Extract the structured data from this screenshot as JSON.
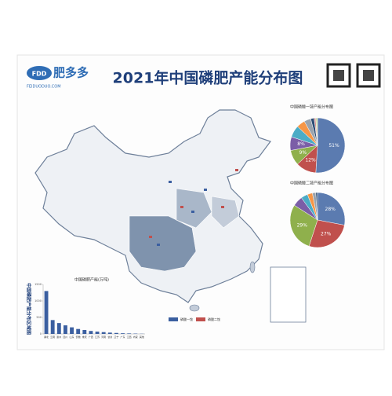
{
  "header": {
    "logo_mark": "FDD",
    "logo_name": "肥多多",
    "logo_site": "FEIDUODUO.COM",
    "title": "2021年中国磷肥产能分布图"
  },
  "pie_charts": [
    {
      "type": "pie",
      "title": "中国磷酸一铵产能分布图",
      "values": [
        51,
        12,
        9,
        8,
        7,
        5,
        4,
        2,
        1,
        1
      ],
      "value_labels": [
        "51%",
        "12%",
        "9%",
        "8%",
        null,
        null,
        null,
        null,
        null,
        null
      ],
      "colors": [
        "#5b7bb0",
        "#c0504d",
        "#8fb04c",
        "#7b5ea7",
        "#4bacc6",
        "#f79646",
        "#9aa3ad",
        "#2c4d75",
        "#d99694",
        "#c3d69b"
      ]
    },
    {
      "type": "pie",
      "title": "中国磷酸二铵产能分布图",
      "values": [
        28,
        27,
        29,
        6,
        4,
        3,
        2,
        1
      ],
      "value_labels": [
        "28%",
        "27%",
        "29%",
        null,
        null,
        null,
        null,
        null
      ],
      "colors": [
        "#5b7bb0",
        "#c0504d",
        "#8fb04c",
        "#7b5ea7",
        "#4bacc6",
        "#f79646",
        "#9aa3ad",
        "#2c4d75"
      ]
    }
  ],
  "bar_chart": {
    "type": "bar",
    "title": "中国磷肥产能(万吨)",
    "side_title": "中国磷肥产能分布区域图",
    "categories": [
      "湖北",
      "云南",
      "贵州",
      "四川",
      "山东",
      "安徽",
      "重庆",
      "广西",
      "江苏",
      "河南",
      "甘肃",
      "辽宁",
      "广东",
      "江西",
      "内蒙",
      "其他"
    ],
    "values": [
      1300,
      420,
      330,
      260,
      200,
      150,
      120,
      90,
      70,
      55,
      40,
      30,
      20,
      15,
      10,
      5
    ],
    "color": "#3b5fa0",
    "ylim": [
      0,
      1500
    ],
    "yticks": [
      0,
      500,
      1000,
      1500
    ]
  },
  "map_legend": [
    "磷酸一铵",
    "磷酸二铵"
  ]
}
